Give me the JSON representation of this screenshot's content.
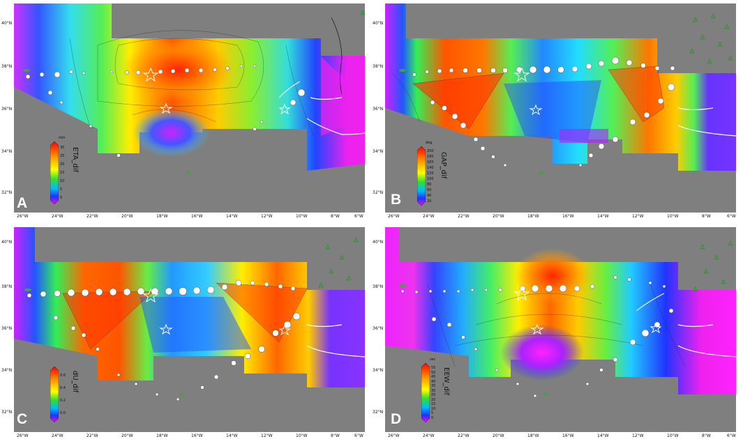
{
  "panels": [
    {
      "id": "A",
      "label": "A",
      "cbar_title": "ETA_dif",
      "cbar_unit": "min",
      "cbar_ticks": [
        "30",
        "25",
        "20",
        "15",
        "10",
        "5",
        "0"
      ],
      "lat_ticks": [
        "40°N",
        "38°N",
        "36°N",
        "34°N",
        "32°N"
      ],
      "lon_ticks": [
        "26°W",
        "24°W",
        "22°W",
        "20°W",
        "18°W",
        "16°W",
        "14°W",
        "12°W",
        "10°W",
        "8°W",
        "6°W"
      ]
    },
    {
      "id": "B",
      "label": "B",
      "cbar_title": "GAP_dif",
      "cbar_unit": "deg",
      "cbar_ticks": [
        "200",
        "180",
        "160",
        "140",
        "120",
        "100",
        "80",
        "60",
        "40",
        "20"
      ],
      "lat_ticks": [
        "40°N",
        "38°N",
        "36°N",
        "34°N",
        "32°N"
      ],
      "lon_ticks": [
        "26°W",
        "24°W",
        "22°W",
        "20°W",
        "18°W",
        "16°W",
        "14°W",
        "12°W",
        "10°W",
        "8°W",
        "6°W"
      ]
    },
    {
      "id": "C",
      "label": "C",
      "cbar_title": "dU_dif",
      "cbar_unit": "",
      "cbar_ticks": [
        "0.6",
        "0.4",
        "0.2",
        "0.0"
      ],
      "lat_ticks": [
        "40°N",
        "38°N",
        "36°N",
        "34°N",
        "32°N"
      ],
      "lon_ticks": [
        "26°W",
        "24°W",
        "22°W",
        "20°W",
        "18°W",
        "16°W",
        "14°W",
        "12°W",
        "10°W",
        "8°W",
        "6°W"
      ]
    },
    {
      "id": "D",
      "label": "D",
      "cbar_title": "EEW_dif",
      "cbar_unit": "sec",
      "cbar_ticks": [
        "55",
        "50",
        "45",
        "40",
        "35",
        "30",
        "25",
        "20",
        "15",
        "10",
        "5",
        "0"
      ],
      "lat_ticks": [
        "40°N",
        "38°N",
        "36°N",
        "34°N",
        "32°N"
      ],
      "lon_ticks": [
        "26°W",
        "24°W",
        "22°W",
        "20°W",
        "18°W",
        "16°W",
        "14°W",
        "12°W",
        "10°W",
        "8°W",
        "6°W"
      ]
    }
  ],
  "colors": {
    "ocean_gray": "#7f7f7f",
    "land_green": "#3fa53f",
    "station_marker": "#ffffff",
    "fault_line": "#ffffff"
  },
  "icons": [
    "star-epicenter-icon",
    "triangle-station-icon",
    "circle-obs-icon"
  ]
}
